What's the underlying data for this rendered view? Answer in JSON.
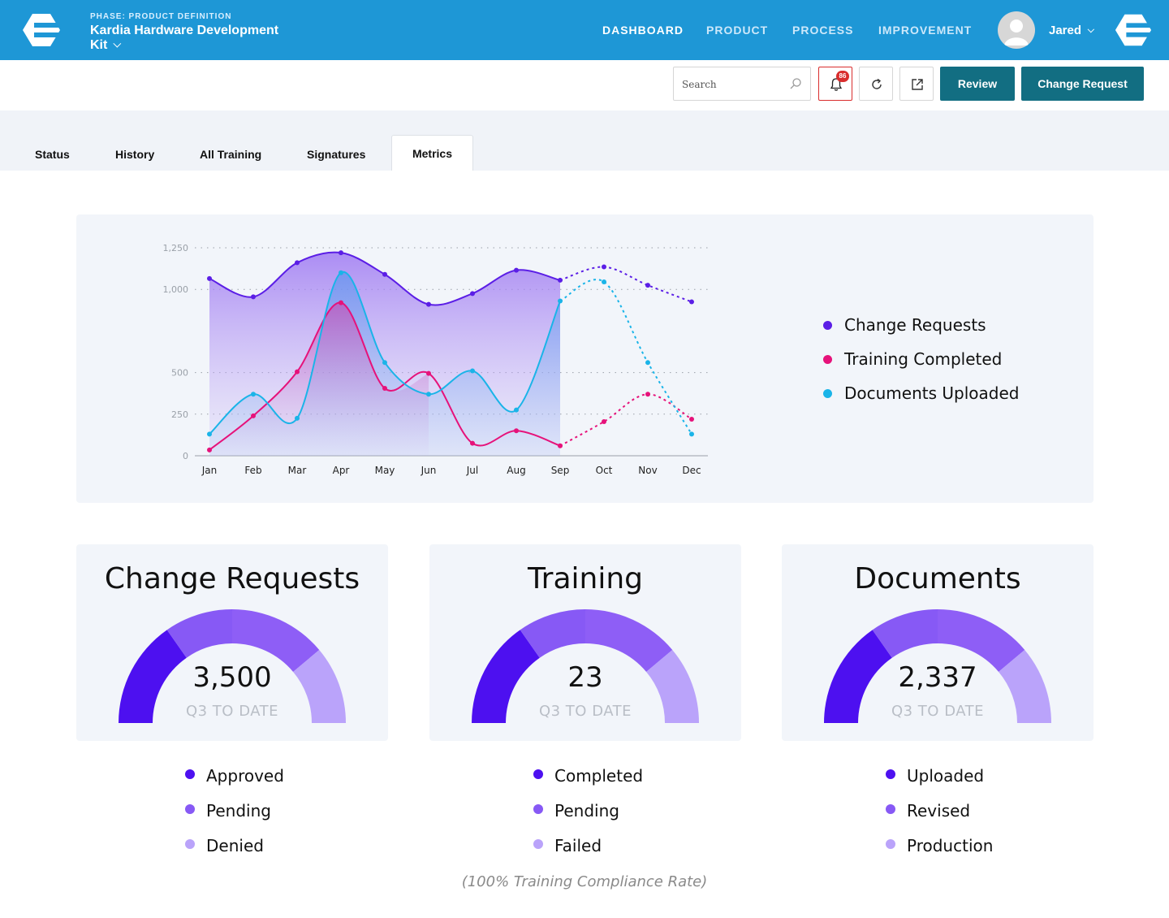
{
  "header": {
    "phase": "PHASE: PRODUCT DEFINITION",
    "project": "Kardia Hardware Development Kit",
    "nav": [
      "DASHBOARD",
      "PRODUCT",
      "PROCESS",
      "IMPROVEMENT"
    ],
    "user": "Jared",
    "brand_color": "#1e97d6"
  },
  "toolbar": {
    "search_placeholder": "Search",
    "notification_count": "86",
    "review_label": "Review",
    "change_request_label": "Change Request",
    "button_color": "#126e82"
  },
  "tabs": [
    "Status",
    "History",
    "All Training",
    "Signatures",
    "Metrics"
  ],
  "active_tab": "Metrics",
  "chart_data": {
    "type": "line",
    "categories": [
      "Jan",
      "Feb",
      "Mar",
      "Apr",
      "May",
      "Jun",
      "Jul",
      "Aug",
      "Sep",
      "Oct",
      "Nov",
      "Dec"
    ],
    "ylim": [
      0,
      1250
    ],
    "yticks": [
      "0",
      "250",
      "500",
      "1,000",
      "1,250"
    ],
    "ytick_values": [
      0,
      250,
      500,
      1000,
      1250
    ],
    "actual_through": "Sep",
    "series": [
      {
        "name": "Change Requests",
        "color": "#5b1ee6",
        "values": [
          1065,
          955,
          1160,
          1220,
          1090,
          910,
          975,
          1115,
          1055,
          1135,
          1025,
          925
        ]
      },
      {
        "name": "Training Completed",
        "color": "#e6127a",
        "values": [
          35,
          240,
          505,
          920,
          405,
          495,
          75,
          150,
          60,
          205,
          370,
          220
        ]
      },
      {
        "name": "Documents Uploaded",
        "color": "#1ab4e8",
        "values": [
          130,
          370,
          225,
          1100,
          560,
          370,
          510,
          275,
          930,
          1045,
          560,
          130
        ]
      }
    ],
    "legend_position": "right"
  },
  "gauges": [
    {
      "title": "Change Requests",
      "value": "3,500",
      "caption": "Q3 TO DATE",
      "legend": [
        "Approved",
        "Pending",
        "Denied"
      ]
    },
    {
      "title": "Training",
      "value": "23",
      "caption": "Q3 TO DATE",
      "legend": [
        "Completed",
        "Pending",
        "Failed"
      ]
    },
    {
      "title": "Documents",
      "value": "2,337",
      "caption": "Q3 TO DATE",
      "legend": [
        "Uploaded",
        "Revised",
        "Production"
      ]
    }
  ],
  "gauge_colors": [
    "#4d10f0",
    "#8759f5",
    "#baa3fa"
  ],
  "footnote": "(100% Training Compliance Rate)"
}
